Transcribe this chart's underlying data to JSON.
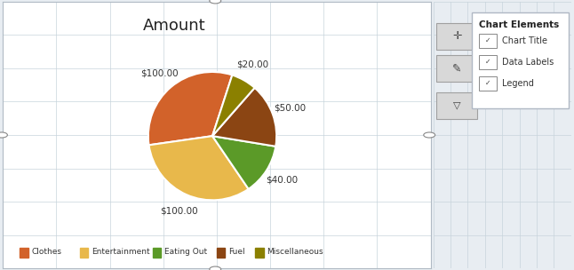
{
  "title": "Amount",
  "labels": [
    "Clothes",
    "Entertainment",
    "Eating Out",
    "Fuel",
    "Miscellaneous"
  ],
  "values": [
    100,
    100,
    40,
    50,
    20
  ],
  "data_labels": [
    "$100.00",
    "$100.00",
    "$40.00",
    "$50.00",
    "$20.00"
  ],
  "colors": [
    "#D2622A",
    "#E8B84B",
    "#5B9A28",
    "#8B4513",
    "#8B8000"
  ],
  "bg_color": "#E8EDF2",
  "chart_area_color": "#FFFFFF",
  "grid_color": "#C8D4DC",
  "start_angle": 72,
  "legend_colors": [
    "#D2622A",
    "#E8B84B",
    "#5B9A28",
    "#8B4513",
    "#8B8000"
  ],
  "panel_title": "Chart Elements",
  "panel_items": [
    "Chart Title",
    "Data Labels",
    "Legend"
  ]
}
